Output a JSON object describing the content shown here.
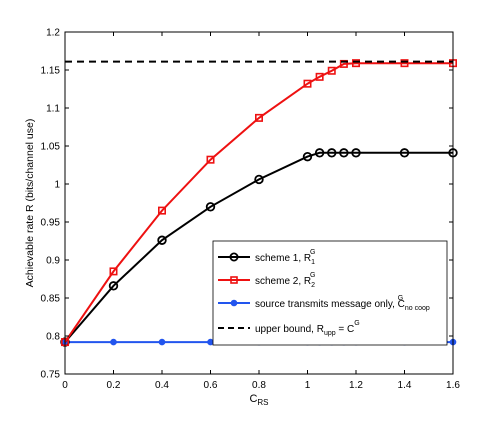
{
  "chart_data": {
    "type": "line",
    "title": "",
    "xlabel_main": "C",
    "xlabel_sub": "RS",
    "ylabel": "Achievable rate R (bits/channel use)",
    "xlim": [
      0,
      1.6
    ],
    "ylim": [
      0.75,
      1.2
    ],
    "xticks": [
      0,
      0.2,
      0.4,
      0.6,
      0.8,
      1,
      1.2,
      1.4,
      1.6
    ],
    "xtick_labels": [
      "0",
      "0.2",
      "0.4",
      "0.6",
      "0.8",
      "1",
      "1.2",
      "1.4",
      "1.6"
    ],
    "yticks": [
      0.75,
      0.8,
      0.85,
      0.9,
      0.95,
      1,
      1.05,
      1.1,
      1.15,
      1.2
    ],
    "ytick_labels": [
      "0.75",
      "0.8",
      "0.85",
      "0.9",
      "0.95",
      "1",
      "1.05",
      "1.1",
      "1.15",
      "1.2"
    ],
    "grid": false,
    "legend_position": "right",
    "series": [
      {
        "id": "scheme1",
        "legend": {
          "main": "scheme 1, R",
          "sub": "1",
          "sup": "G"
        },
        "color": "#000000",
        "marker": "circle",
        "dashed": false,
        "x": [
          0,
          0.2,
          0.4,
          0.6,
          0.8,
          1,
          1.05,
          1.1,
          1.15,
          1.2,
          1.4,
          1.6
        ],
        "y": [
          0.792,
          0.866,
          0.926,
          0.97,
          1.006,
          1.036,
          1.041,
          1.041,
          1.041,
          1.041,
          1.041,
          1.041
        ]
      },
      {
        "id": "scheme2",
        "legend": {
          "main": "scheme 2, R",
          "sub": "2",
          "sup": "G"
        },
        "color": "#ee1111",
        "marker": "square",
        "dashed": false,
        "x": [
          0,
          0.2,
          0.4,
          0.6,
          0.8,
          1,
          1.05,
          1.1,
          1.15,
          1.2,
          1.4,
          1.6
        ],
        "y": [
          0.792,
          0.885,
          0.965,
          1.032,
          1.087,
          1.132,
          1.141,
          1.149,
          1.158,
          1.159,
          1.159,
          1.159
        ]
      },
      {
        "id": "source",
        "legend": {
          "main": "source transmits message only, C",
          "sub": "no coop",
          "sup": "G"
        },
        "color": "#2255ee",
        "marker": "dot",
        "dashed": false,
        "x": [
          0,
          0.2,
          0.4,
          0.6,
          0.8,
          1,
          1.05,
          1.1,
          1.15,
          1.2,
          1.4,
          1.6
        ],
        "y": [
          0.792,
          0.792,
          0.792,
          0.792,
          0.792,
          0.792,
          0.792,
          0.792,
          0.792,
          0.792,
          0.792,
          0.792
        ]
      },
      {
        "id": "upper",
        "legend": {
          "main": "upper bound, R",
          "sub": "upp",
          "post": " = C",
          "sup": "G"
        },
        "color": "#000000",
        "marker": "none",
        "dashed": true,
        "x": [
          0,
          1.6
        ],
        "y": [
          1.161,
          1.161
        ]
      }
    ]
  }
}
